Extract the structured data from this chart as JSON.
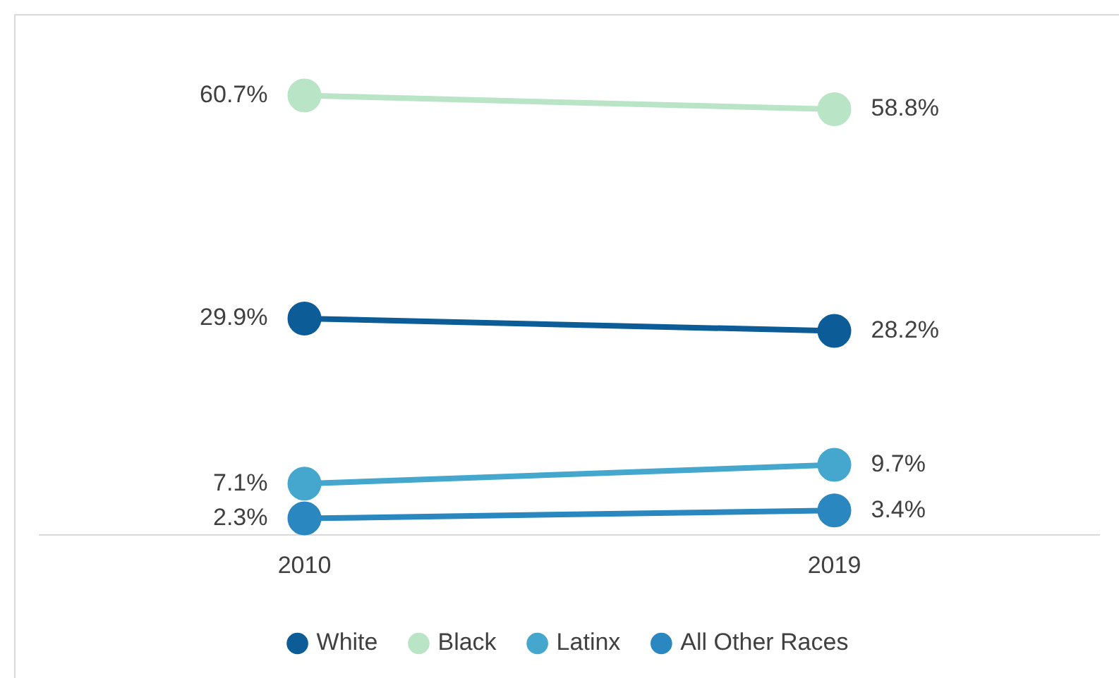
{
  "chart_data": {
    "type": "line",
    "categories": [
      "2010",
      "2019"
    ],
    "series": [
      {
        "name": "White",
        "color": "#0b5c97",
        "values": [
          29.9,
          28.2
        ],
        "value_labels": [
          "29.9%",
          "28.2%"
        ]
      },
      {
        "name": "Black",
        "color": "#b9e4c6",
        "values": [
          60.7,
          58.8
        ],
        "value_labels": [
          "60.7%",
          "58.8%"
        ]
      },
      {
        "name": "Latinx",
        "color": "#45a7cd",
        "values": [
          7.1,
          9.7
        ],
        "value_labels": [
          "7.1%",
          "9.7%"
        ]
      },
      {
        "name": "All Other Races",
        "color": "#2a87bf",
        "values": [
          2.3,
          3.4
        ],
        "value_labels": [
          "2.3%",
          "3.4%"
        ]
      }
    ],
    "legend": "bottom",
    "marker": "circle",
    "line_style": "solid",
    "grid": false
  }
}
